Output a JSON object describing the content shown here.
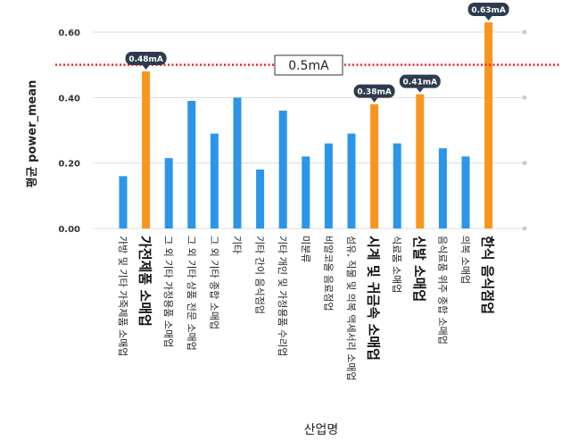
{
  "chart_data": {
    "type": "bar",
    "xlabel": "산업명",
    "ylabel": "평균 power_mean",
    "ylim": [
      0,
      0.6
    ],
    "yticks": [
      "0.00",
      "0.20",
      "0.40",
      "0.60"
    ],
    "grid": true,
    "categories": [
      "가방 및 기타 가죽제품 소매업",
      "가전제품 소매업",
      "그 외 기타 가정용품 소매업",
      "그 외 기타 상품 전문 소매업",
      "그 외 기타 종합 소매업",
      "기타",
      "기타 간이 음식점업",
      "기타 개인 및 가정용품 수리업",
      "미분류",
      "비알코올 음료점업",
      "섬유, 직물 및 의복 액세서리 소매업",
      "시계 및 귀금속 소매업",
      "식료품 소매업",
      "신발 소매업",
      "음식료품 위주 종합 소매업",
      "의복 소매업",
      "한식 음식점업"
    ],
    "values": [
      0.16,
      0.48,
      0.215,
      0.39,
      0.29,
      0.4,
      0.18,
      0.36,
      0.22,
      0.26,
      0.29,
      0.38,
      0.26,
      0.41,
      0.245,
      0.22,
      0.63
    ],
    "highlighted": [
      false,
      true,
      false,
      false,
      false,
      false,
      false,
      false,
      false,
      false,
      false,
      true,
      false,
      true,
      false,
      false,
      true
    ],
    "callouts": [
      "",
      "0.48mA",
      "",
      "",
      "",
      "",
      "",
      "",
      "",
      "",
      "",
      "0.38mA",
      "",
      "0.41mA",
      "",
      "",
      "0.63mA"
    ],
    "threshold": {
      "value": 0.5,
      "label": "0.5mA",
      "color": "#e8232a"
    },
    "colors": {
      "default": "#2b95ea",
      "highlight": "#f7961e",
      "callout": "#2e3b4e"
    }
  }
}
